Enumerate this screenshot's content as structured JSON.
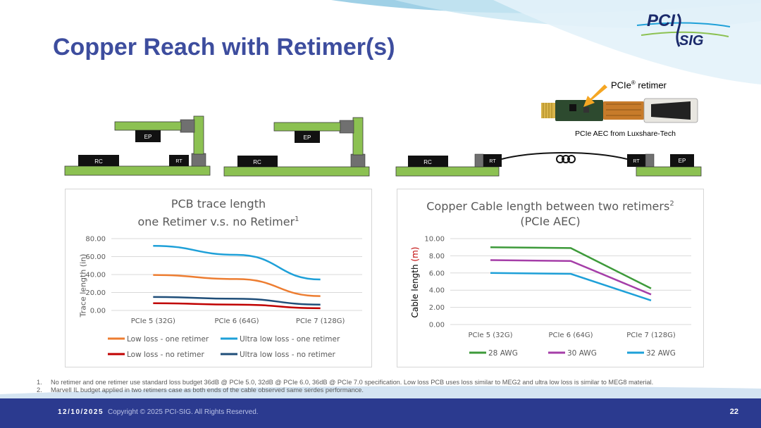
{
  "slide": {
    "title": "Copper Reach with Retimer(s)",
    "logo": {
      "top": "PCI",
      "bottom": "SIG"
    },
    "footer": {
      "date": "12/10/2025",
      "copyright": "Copyright © 2025 PCI-SIG. All Rights Reserved.",
      "page": "22"
    },
    "footnotes": [
      {
        "num": "1.",
        "text": "No retimer and one retimer use standard loss budget 36dB @ PCIe 5.0, 32dB @ PCIe 6.0, 36dB @ PCIe 7.0 specification. Low loss PCB uses loss similar to MEG2 and ultra low loss is similar to MEG8 material."
      },
      {
        "num": "2.",
        "text": "Marvell IL budget applied in two retimers case as both ends of the cable observed same serdes performance."
      }
    ]
  },
  "diagram": {
    "labels": {
      "rc": "RC",
      "rt": "RT",
      "ep": "EP"
    },
    "retimer_callout": {
      "text": "PCIe",
      "sup": "®",
      "suffix": " retimer"
    },
    "aec_label": "PCIe AEC from Luxshare-Tech"
  },
  "chart_data": [
    {
      "type": "line",
      "title_line1": "PCB trace length",
      "title_line2": "one Retimer v.s. no Retimer",
      "title_sup": "1",
      "ylabel": "Trace length (in)",
      "ylim": [
        0,
        80
      ],
      "yticks": [
        "0.00",
        "20.00",
        "40.00",
        "60.00",
        "80.00"
      ],
      "categories": [
        "PCIe 5 (32G)",
        "PCIe 6 (64G)",
        "PCIe 7 (128G)"
      ],
      "grid": true,
      "legend": "bottom",
      "series": [
        {
          "name": "Low loss - one retimer",
          "values": [
            39.5,
            35,
            16
          ],
          "color": "#ed7d31"
        },
        {
          "name": "Ultra low loss - one retimer",
          "values": [
            72,
            62,
            34.5
          ],
          "color": "#1ea0d8"
        },
        {
          "name": "Low loss - no retimer",
          "values": [
            8,
            6.5,
            2.5
          ],
          "color": "#c00000"
        },
        {
          "name": "Ultra low loss - no retimer",
          "values": [
            15,
            13,
            6.5
          ],
          "color": "#1f4e79"
        }
      ]
    },
    {
      "type": "line",
      "title_line1": "Copper Cable length between two retimers",
      "title_sup": "2",
      "title_line2": "(PCIe AEC)",
      "ylabel_prefix": "Cable length ",
      "ylabel_unit": "(m)",
      "ylim": [
        0,
        10
      ],
      "yticks": [
        "0.00",
        "2.00",
        "4.00",
        "6.00",
        "8.00",
        "10.00"
      ],
      "categories": [
        "PCIe 5 (32G)",
        "PCIe 6 (64G)",
        "PCIe 7 (128G)"
      ],
      "grid": true,
      "legend": "bottom",
      "series": [
        {
          "name": "28 AWG",
          "values": [
            9.0,
            8.9,
            4.2
          ],
          "color": "#3d9a3a"
        },
        {
          "name": "30 AWG",
          "values": [
            7.5,
            7.4,
            3.5
          ],
          "color": "#a53ea8"
        },
        {
          "name": "32 AWG",
          "values": [
            6.0,
            5.9,
            2.8
          ],
          "color": "#1ea0d8"
        }
      ]
    }
  ],
  "colors": {
    "title": "#3d4d9e",
    "footer_bg": "#2b3a8f",
    "board_green": "#8cc152",
    "chip_black": "#111111",
    "connector_gray": "#707070",
    "arrow_orange": "#f5a623"
  }
}
